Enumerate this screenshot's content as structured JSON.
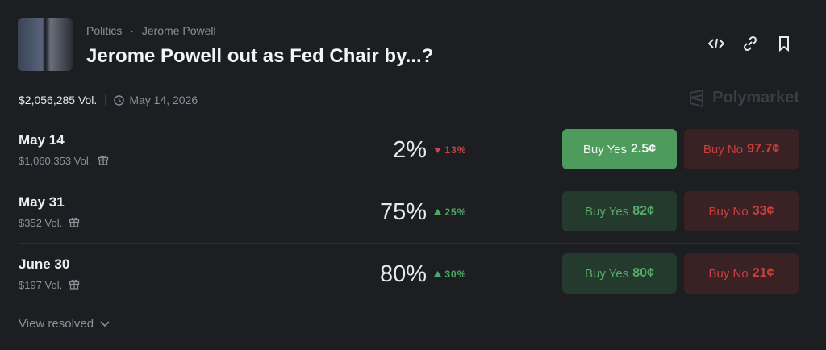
{
  "header": {
    "category": "Politics",
    "separator": "·",
    "tag": "Jerome Powell",
    "title": "Jerome Powell out as Fed Chair by...?"
  },
  "meta": {
    "volume": "$2,056,285 Vol.",
    "end_date": "May 14, 2026",
    "brand": "Polymarket"
  },
  "outcomes": [
    {
      "name": "May 14",
      "volume": "$1,060,353 Vol.",
      "chance": "2%",
      "trend": "down",
      "change": "13%",
      "buy_yes": "Buy Yes",
      "yes_price": "2.5¢",
      "buy_no": "Buy No",
      "no_price": "97.7¢"
    },
    {
      "name": "May 31",
      "volume": "$352 Vol.",
      "chance": "75%",
      "trend": "up",
      "change": "25%",
      "buy_yes": "Buy Yes",
      "yes_price": "82¢",
      "buy_no": "Buy No",
      "no_price": "33¢"
    },
    {
      "name": "June 30",
      "volume": "$197 Vol.",
      "chance": "80%",
      "trend": "up",
      "change": "30%",
      "buy_yes": "Buy Yes",
      "yes_price": "80¢",
      "buy_no": "Buy No",
      "no_price": "21¢"
    }
  ],
  "footer": {
    "view_resolved": "View resolved"
  }
}
